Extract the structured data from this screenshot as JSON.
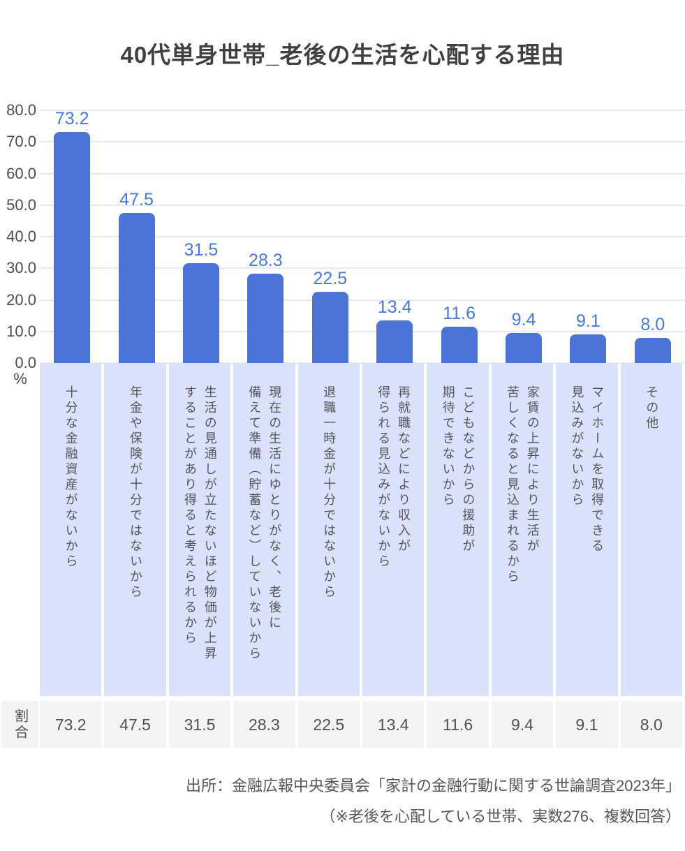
{
  "title": "40代単身世帯_老後の生活を心配する理由",
  "chart_data": {
    "type": "bar",
    "title": "40代単身世帯_老後の生活を心配する理由",
    "categories": [
      [
        "十分な金融資産がないから"
      ],
      [
        "年金や保険が十分ではないから"
      ],
      [
        "生活の見通しが立たないほど物価が上昇",
        "することがあり得ると考えられるから"
      ],
      [
        "現在の生活にゆとりがなく、老後に",
        "備えて準備（貯蓄など）していないから"
      ],
      [
        "退職一時金が十分ではないから"
      ],
      [
        "再就職などにより収入が",
        "得られる見込みがないから"
      ],
      [
        "こどもなどからの援助が",
        "期待できないから"
      ],
      [
        "家賃の上昇により生活が",
        "苦しくなると見込まれるから"
      ],
      [
        "マイホームを取得できる",
        "見込みがないから"
      ],
      [
        "その他"
      ]
    ],
    "values": [
      73.2,
      47.5,
      31.5,
      28.3,
      22.5,
      13.4,
      11.6,
      9.4,
      9.1,
      8.0
    ],
    "value_labels": [
      "73.2",
      "47.5",
      "31.5",
      "28.3",
      "22.5",
      "13.4",
      "11.6",
      "9.4",
      "9.1",
      "8.0"
    ],
    "ylabel": "%",
    "ylim": [
      0,
      80
    ],
    "ytick_labels": [
      "0.0",
      "10.0",
      "20.0",
      "30.0",
      "40.0",
      "50.0",
      "60.0",
      "70.0",
      "80.0"
    ],
    "grid": true,
    "legend_position": "none",
    "bar_color": "#4b74d9",
    "value_label_color": "#4678e0",
    "category_band_color": "#d9e1fb"
  },
  "table": {
    "row_header": "割合",
    "values": [
      "73.2",
      "47.5",
      "31.5",
      "28.3",
      "22.5",
      "13.4",
      "11.6",
      "9.4",
      "9.1",
      "8.0"
    ]
  },
  "source": {
    "line1": "出所：金融広報中央委員会「家計の金融行動に関する世論調査2023年」",
    "line2": "（※老後を心配している世帯、実数276、複数回答）"
  }
}
